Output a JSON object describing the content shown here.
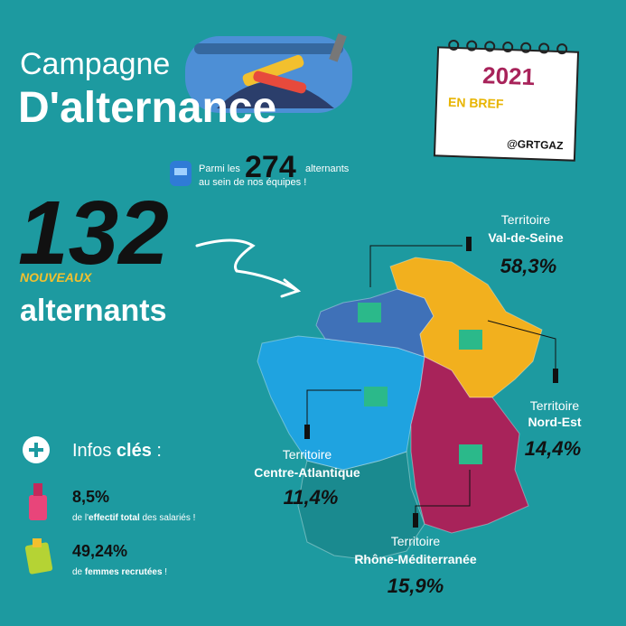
{
  "header": {
    "title_line1": "Campagne",
    "title_line2": "D'alternance"
  },
  "calendar": {
    "year": "2021",
    "subtitle": "EN BREF",
    "handle": "@GRTGAZ"
  },
  "total": {
    "prefix": "Parmi les",
    "number": "274",
    "suffix": "alternants",
    "line2": "au sein de nos équipes !"
  },
  "new_hires": {
    "number": "132",
    "tag": "NOUVEAUX",
    "label": "alternants"
  },
  "territories": [
    {
      "label": "Territoire",
      "name": "Val-de-Seine",
      "share": "58,3%"
    },
    {
      "label": "Territoire",
      "name": "Nord-Est",
      "share": "14,4%"
    },
    {
      "label": "Territoire",
      "name": "Centre-Atlantique",
      "share": "11,4%"
    },
    {
      "label": "Territoire",
      "name": "Rhône-Méditerranée",
      "share": "15,9%"
    }
  ],
  "key_info": {
    "title": "Infos",
    "title_bold": "clés",
    "title_end": ":",
    "items": [
      {
        "value": "8,5%",
        "text_before": "de l'",
        "text_bold": "effectif total",
        "text_after": " des salariés !"
      },
      {
        "value": "49,24%",
        "text_before": "de ",
        "text_bold": "femmes recrutées",
        "text_after": " !"
      }
    ]
  }
}
